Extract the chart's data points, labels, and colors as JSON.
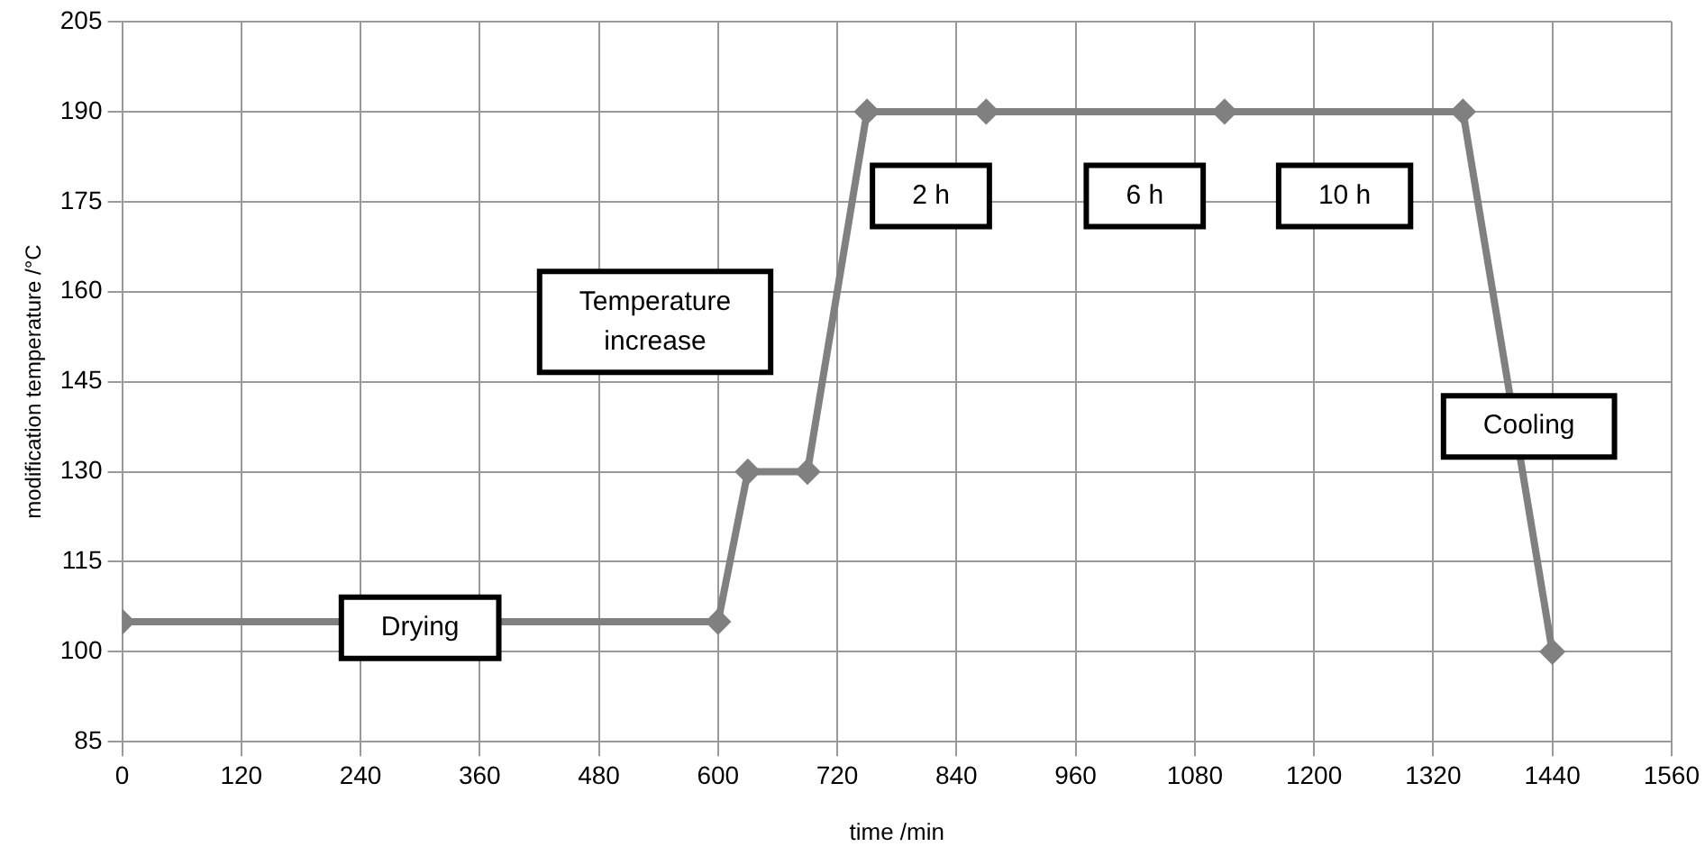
{
  "chart_data": {
    "type": "line",
    "xlabel": "time /min",
    "ylabel": "modification temperature /°C",
    "x": [
      0,
      600,
      630,
      690,
      750,
      870,
      1110,
      1350,
      1440
    ],
    "series": [
      {
        "color": "#808080",
        "values": [
          105,
          105,
          130,
          130,
          190,
          190,
          190,
          190,
          100
        ]
      }
    ],
    "xlim": [
      0,
      1560
    ],
    "xticks": [
      0,
      120,
      240,
      360,
      480,
      600,
      720,
      840,
      960,
      1080,
      1200,
      1320,
      1440,
      1560
    ],
    "ylim": [
      85,
      205
    ],
    "yticks": [
      85,
      100,
      115,
      130,
      145,
      160,
      175,
      190,
      205
    ],
    "grid": true,
    "marker": "diamond",
    "line_style": "solid",
    "annotations": [
      {
        "text": "Drying",
        "x": 300,
        "y": 104
      },
      "Temperature increase",
      "2 h",
      "6 h",
      "10 h",
      "Cooling"
    ]
  }
}
